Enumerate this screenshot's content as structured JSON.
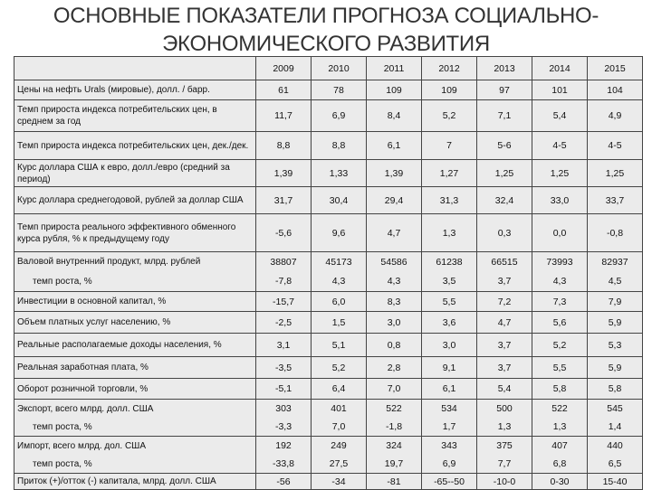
{
  "title_line1": "ОСНОВНЫЕ ПОКАЗАТЕЛИ ПРОГНОЗА СОЦИАЛЬНО-",
  "title_line2": "ЭКОНОМИЧЕСКОГО РАЗВИТИЯ",
  "years": [
    "2009",
    "2010",
    "2011",
    "2012",
    "2013",
    "2014",
    "2015"
  ],
  "rows": [
    {
      "label": "Цены на нефть Urals (мировые), долл. / барр.",
      "values": [
        "61",
        "78",
        "109",
        "109",
        "97",
        "101",
        "104"
      ]
    },
    {
      "label": "Темп прироста индекса потребительских цен, в среднем за год",
      "values": [
        "11,7",
        "6,9",
        "8,4",
        "5,2",
        "7,1",
        "5,4",
        "4,9"
      ]
    },
    {
      "label": "Темп прироста индекса потребительских цен, дек./дек.",
      "values": [
        "8,8",
        "8,8",
        "6,1",
        "7",
        "5-6",
        "4-5",
        "4-5"
      ]
    },
    {
      "label": "Курс доллара США к евро, долл./евро (средний за период)",
      "values": [
        "1,39",
        "1,33",
        "1,39",
        "1,27",
        "1,25",
        "1,25",
        "1,25"
      ]
    },
    {
      "label": "Курс доллара среднегодовой, рублей за доллар США",
      "values": [
        "31,7",
        "30,4",
        "29,4",
        "31,3",
        "32,4",
        "33,0",
        "33,7"
      ]
    },
    {
      "label": "Темп прироста реального эффективного обменного курса рубля, % к предыдущему году",
      "values": [
        "-5,6",
        "9,6",
        "4,7",
        "1,3",
        "0,3",
        "0,0",
        "-0,8"
      ]
    },
    {
      "label": "Валовой внутренний продукт, млрд. рублей",
      "values": [
        "38807",
        "45173",
        "54586",
        "61238",
        "66515",
        "73993",
        "82937"
      ]
    },
    {
      "label": "темп роста, %",
      "values": [
        "-7,8",
        "4,3",
        "4,3",
        "3,5",
        "3,7",
        "4,3",
        "4,5"
      ]
    },
    {
      "label": "Инвестиции в основной капитал, %",
      "values": [
        "-15,7",
        "6,0",
        "8,3",
        "5,5",
        "7,2",
        "7,3",
        "7,9"
      ]
    },
    {
      "label": "Объем платных услуг населению, %",
      "values": [
        "-2,5",
        "1,5",
        "3,0",
        "3,6",
        "4,7",
        "5,6",
        "5,9"
      ]
    },
    {
      "label": "Реальные располагаемые доходы населения, %",
      "values": [
        "3,1",
        "5,1",
        "0,8",
        "3,0",
        "3,7",
        "5,2",
        "5,3"
      ]
    },
    {
      "label": "Реальная заработная плата, %",
      "values": [
        "-3,5",
        "5,2",
        "2,8",
        "9,1",
        "3,7",
        "5,5",
        "5,9"
      ]
    },
    {
      "label": "Оборот розничной торговли, %",
      "values": [
        "-5,1",
        "6,4",
        "7,0",
        "6,1",
        "5,4",
        "5,8",
        "5,8"
      ]
    },
    {
      "label": "Экспорт, всего млрд. долл. США",
      "values": [
        "303",
        "401",
        "522",
        "534",
        "500",
        "522",
        "545"
      ]
    },
    {
      "label": "темп роста, %",
      "values": [
        "-3,3",
        "7,0",
        "-1,8",
        "1,7",
        "1,3",
        "1,3",
        "1,4"
      ]
    },
    {
      "label": "Импорт, всего млрд. дол. США",
      "values": [
        "192",
        "249",
        "324",
        "343",
        "375",
        "407",
        "440"
      ]
    },
    {
      "label": "темп роста, %",
      "values": [
        "-33,8",
        "27,5",
        "19,7",
        "6,9",
        "7,7",
        "6,8",
        "6,5"
      ]
    },
    {
      "label": "Приток (+)/отток (-) капитала, млрд. долл. США",
      "values": [
        "-56",
        "-34",
        "-81",
        "-65--50",
        "-10-0",
        "0-30",
        "15-40"
      ]
    }
  ]
}
